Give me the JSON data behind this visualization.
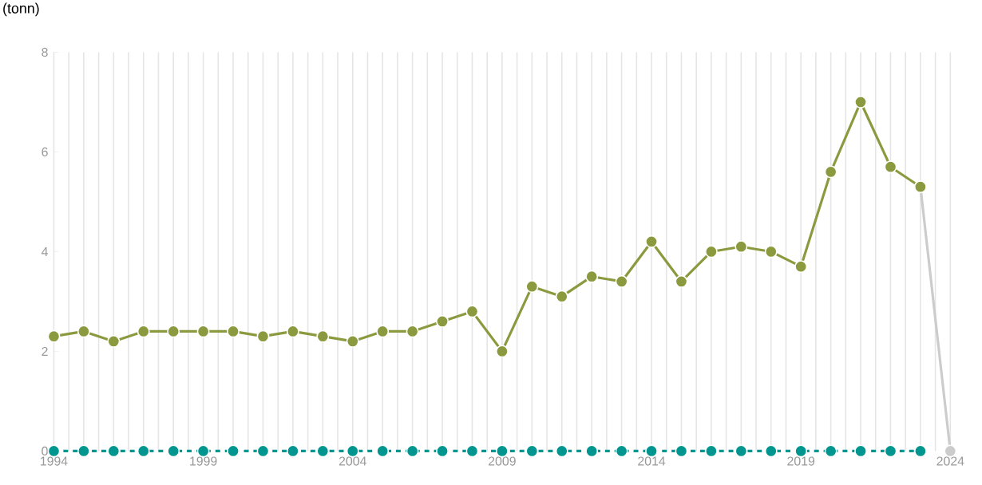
{
  "chart_data": {
    "type": "line",
    "ylabel": "(tonn)",
    "x": [
      1994,
      1995,
      1996,
      1997,
      1998,
      1999,
      2000,
      2001,
      2002,
      2003,
      2004,
      2005,
      2006,
      2007,
      2008,
      2009,
      2010,
      2011,
      2012,
      2013,
      2014,
      2015,
      2016,
      2017,
      2018,
      2019,
      2020,
      2021,
      2022,
      2023,
      2024
    ],
    "series": [
      {
        "color": "#8c9a3f",
        "line_style": "solid",
        "values": [
          2.3,
          2.4,
          2.2,
          2.4,
          2.4,
          2.4,
          2.4,
          2.3,
          2.4,
          2.3,
          2.2,
          2.4,
          2.4,
          2.6,
          2.8,
          2.0,
          3.3,
          3.1,
          3.5,
          3.4,
          4.2,
          3.4,
          4.0,
          4.1,
          4.0,
          3.7,
          5.6,
          7.0,
          5.7,
          5.3,
          null
        ]
      },
      {
        "color": "#cccccc",
        "line_style": "solid",
        "values": [
          null,
          null,
          null,
          null,
          null,
          null,
          null,
          null,
          null,
          null,
          null,
          null,
          null,
          null,
          null,
          null,
          null,
          null,
          null,
          null,
          null,
          null,
          null,
          null,
          null,
          null,
          null,
          null,
          null,
          5.3,
          0
        ]
      },
      {
        "color": "#00968f",
        "line_style": "dashed",
        "values": [
          0,
          0,
          0,
          0,
          0,
          0,
          0,
          0,
          0,
          0,
          0,
          0,
          0,
          0,
          0,
          0,
          0,
          0,
          0,
          0,
          0,
          0,
          0,
          0,
          0,
          0,
          0,
          0,
          0,
          0,
          null
        ]
      }
    ],
    "xlim": [
      1994,
      2024
    ],
    "xticks": [
      1994,
      1999,
      2004,
      2009,
      2014,
      2019,
      2024
    ],
    "ylim": [
      0,
      8
    ],
    "yticks": [
      0,
      2,
      4,
      6,
      8
    ],
    "grid": "x",
    "marker": "circle"
  }
}
